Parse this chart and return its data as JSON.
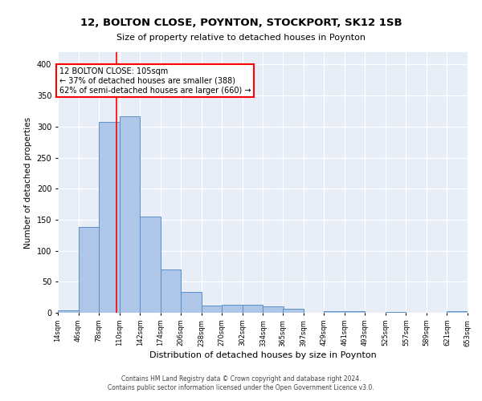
{
  "title1": "12, BOLTON CLOSE, POYNTON, STOCKPORT, SK12 1SB",
  "title2": "Size of property relative to detached houses in Poynton",
  "xlabel": "Distribution of detached houses by size in Poynton",
  "ylabel": "Number of detached properties",
  "annotation_line1": "12 BOLTON CLOSE: 105sqm",
  "annotation_line2": "← 37% of detached houses are smaller (388)",
  "annotation_line3": "62% of semi-detached houses are larger (660) →",
  "property_size": 105,
  "bin_edges": [
    14,
    46,
    78,
    110,
    142,
    174,
    206,
    238,
    270,
    302,
    334,
    365,
    397,
    429,
    461,
    493,
    525,
    557,
    589,
    621,
    653
  ],
  "bin_counts": [
    4,
    138,
    308,
    316,
    155,
    70,
    33,
    11,
    13,
    13,
    10,
    7,
    0,
    3,
    3,
    0,
    1,
    0,
    0,
    2
  ],
  "bar_color": "#aec6e8",
  "bar_edge_color": "#5b8fc9",
  "vline_color": "red",
  "vline_x": 105,
  "annotation_box_color": "white",
  "annotation_box_edge": "red",
  "bg_color": "#e8eef8",
  "grid_color": "white",
  "footer_line1": "Contains HM Land Registry data © Crown copyright and database right 2024.",
  "footer_line2": "Contains public sector information licensed under the Open Government Licence v3.0.",
  "ylim": [
    0,
    420
  ],
  "yticks": [
    0,
    50,
    100,
    150,
    200,
    250,
    300,
    350,
    400
  ]
}
